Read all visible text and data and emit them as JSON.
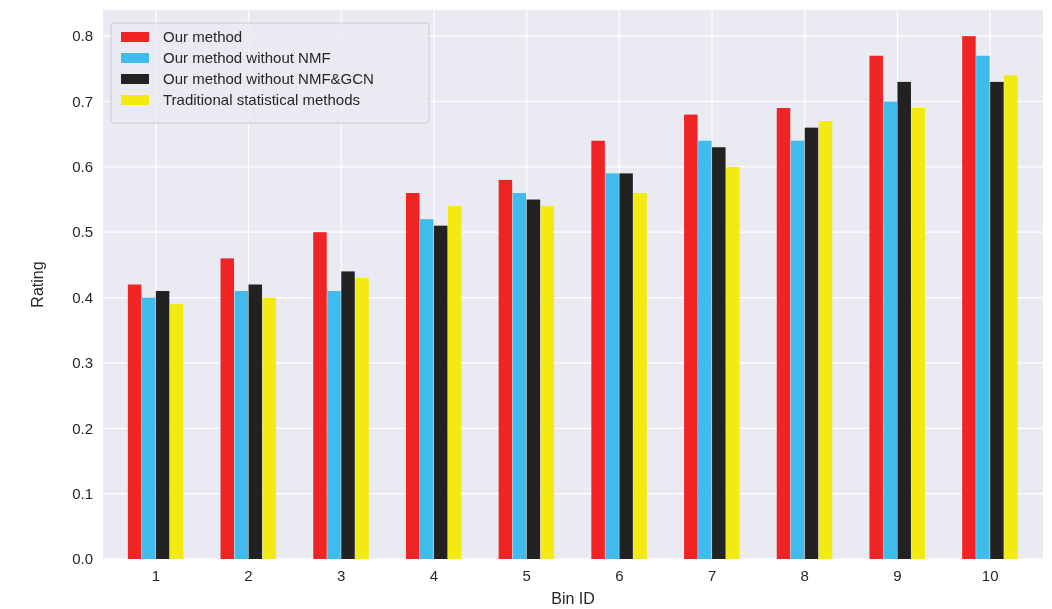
{
  "chart_data": {
    "type": "bar",
    "xlabel": "Bin ID",
    "ylabel": "Rating",
    "categories": [
      "1",
      "2",
      "3",
      "4",
      "5",
      "6",
      "7",
      "8",
      "9",
      "10"
    ],
    "series": [
      {
        "name": "Our method",
        "color": "#f02424",
        "values": [
          0.42,
          0.46,
          0.5,
          0.56,
          0.58,
          0.64,
          0.68,
          0.69,
          0.77,
          0.8
        ]
      },
      {
        "name": "Our method without NMF",
        "color": "#3fbcec",
        "values": [
          0.4,
          0.41,
          0.41,
          0.52,
          0.56,
          0.59,
          0.64,
          0.64,
          0.7,
          0.77
        ]
      },
      {
        "name": "Our method without NMF&GCN",
        "color": "#222222",
        "values": [
          0.41,
          0.42,
          0.44,
          0.51,
          0.55,
          0.59,
          0.63,
          0.66,
          0.73,
          0.73
        ]
      },
      {
        "name": "Traditional statistical methods",
        "color": "#f2ea10",
        "values": [
          0.39,
          0.4,
          0.43,
          0.54,
          0.54,
          0.56,
          0.6,
          0.67,
          0.69,
          0.74
        ]
      }
    ],
    "ylim": [
      0,
      0.84
    ],
    "yticks": [
      {
        "value": 0,
        "label": "0.0"
      },
      {
        "value": 0.1,
        "label": "0.1"
      },
      {
        "value": 0.2,
        "label": "0.2"
      },
      {
        "value": 0.3,
        "label": "0.3"
      },
      {
        "value": 0.4,
        "label": "0.4"
      },
      {
        "value": 0.5,
        "label": "0.5"
      },
      {
        "value": 0.6,
        "label": "0.6"
      },
      {
        "value": 0.7,
        "label": "0.7"
      },
      {
        "value": 0.8,
        "label": "0.8"
      }
    ],
    "grid": true,
    "legend": "top left"
  }
}
